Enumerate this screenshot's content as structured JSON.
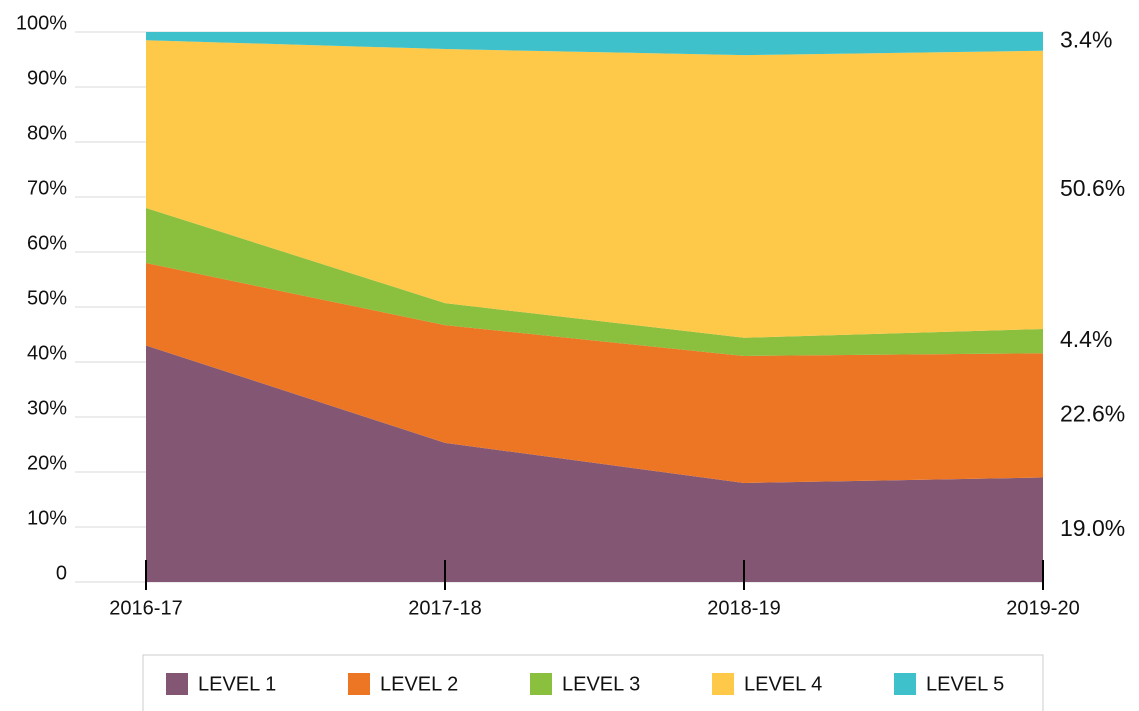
{
  "chart_data": {
    "type": "stacked_area",
    "categories": [
      "2016-17",
      "2017-18",
      "2018-19",
      "2019-20"
    ],
    "series": [
      {
        "name": "LEVEL 1",
        "color": "#835674",
        "values": [
          43,
          25.3,
          18,
          19.0
        ],
        "value_labels": [
          null,
          null,
          null,
          "19.0%"
        ]
      },
      {
        "name": "LEVEL 2",
        "color": "#ed7625",
        "values": [
          15,
          21.4,
          23.1,
          22.6
        ],
        "value_labels": [
          null,
          null,
          null,
          "22.6%"
        ]
      },
      {
        "name": "LEVEL 3",
        "color": "#8bc03e",
        "values": [
          10,
          4,
          3.3,
          4.4
        ],
        "value_labels": [
          null,
          null,
          null,
          "4.4%"
        ]
      },
      {
        "name": "LEVEL 4",
        "color": "#fec849",
        "values": [
          30.5,
          46.2,
          51.4,
          50.6
        ],
        "value_labels": [
          null,
          null,
          null,
          "50.6%"
        ]
      },
      {
        "name": "LEVEL 5",
        "color": "#3fc1cb",
        "values": [
          1.5,
          3.1,
          4.2,
          3.4
        ],
        "value_labels": [
          null,
          null,
          null,
          "3.4%"
        ]
      }
    ],
    "ylim": [
      0,
      100
    ],
    "yticks": [
      0,
      {
        "value": 10,
        "label": "10%"
      },
      {
        "value": 20,
        "label": "20%"
      },
      {
        "value": 30,
        "label": "30%"
      },
      {
        "value": 40,
        "label": "40%"
      },
      {
        "value": 50,
        "label": "50%"
      },
      {
        "value": 60,
        "label": "60%"
      },
      {
        "value": 70,
        "label": "70%"
      },
      {
        "value": 80,
        "label": "80%"
      },
      {
        "value": 90,
        "label": "90%"
      },
      {
        "value": 100,
        "label": "100%"
      }
    ],
    "grid": true,
    "legend": "bottom"
  }
}
